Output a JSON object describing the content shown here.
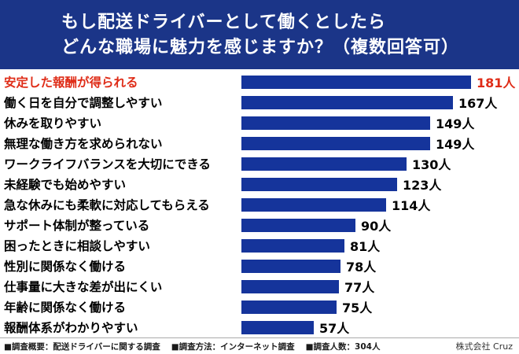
{
  "header": {
    "title_line1": "もし配送ドライバーとして働くとしたら",
    "title_line2": "どんな職場に魅力を感じますか？（複数回答可）"
  },
  "chart_data": {
    "type": "bar",
    "orientation": "horizontal",
    "title": "もし配送ドライバーとして働くとしたら どんな職場に魅力を感じますか？（複数回答可）",
    "unit": "人",
    "categories": [
      "安定した報酬が得られる",
      "働く日を自分で調整しやすい",
      "休みを取りやすい",
      "無理な働き方を求められない",
      "ワークライフバランスを大切にできる",
      "未経験でも始めやすい",
      "急な休みにも柔軟に対応してもらえる",
      "サポート体制が整っている",
      "困ったときに相談しやすい",
      "性別に関係なく働ける",
      "仕事量に大きな差が出にくい",
      "年齢に関係なく働ける",
      "報酬体系がわかりやすい"
    ],
    "values": [
      181,
      167,
      149,
      149,
      130,
      123,
      114,
      90,
      81,
      78,
      77,
      75,
      57
    ],
    "max_value": 181,
    "highlight_index": 0,
    "bar_color": "#15349b",
    "highlight_text_color": "#df2c17",
    "legend": false,
    "grid": false,
    "xlim": [
      0,
      181
    ]
  },
  "footer": {
    "survey_overview": "■調査概要：配送ドライバーに関する調査",
    "survey_method": "■調査方法：インターネット調査",
    "survey_count": "■調査人数：304人",
    "company": "株式会社 Cruz"
  }
}
